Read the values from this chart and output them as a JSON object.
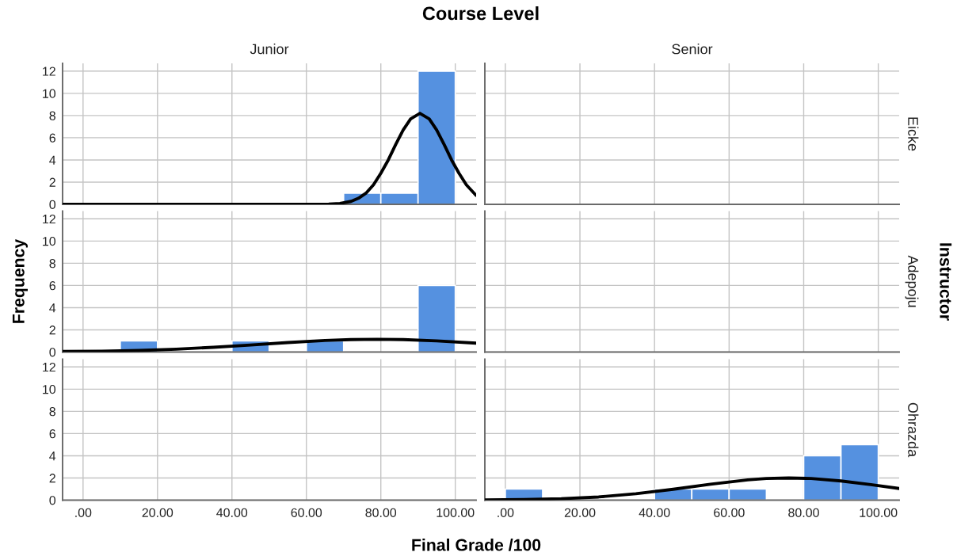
{
  "chart_data": [
    {
      "type": "histogram",
      "title": "Course Level",
      "subtitle": "Junior",
      "bins": [
        0,
        10,
        20,
        30,
        40,
        50,
        60,
        70,
        80,
        90,
        100
      ],
      "xlim": [
        -5.5,
        105.6
      ],
      "xticks": [
        0,
        20,
        40,
        60,
        80,
        100
      ],
      "ylim": [
        0,
        12.7
      ],
      "yticks": [
        0,
        2,
        4,
        6,
        8,
        10,
        12
      ],
      "grid": true,
      "tick_labels": "y",
      "series": [
        {
          "color": "#5591e0",
          "values": [
            0,
            0,
            0,
            0,
            0,
            0,
            0,
            1,
            1,
            12
          ]
        },
        {
          "type": "line",
          "color": "#000000",
          "x": [
            -5.5,
            55,
            62,
            66,
            69,
            72,
            74,
            76,
            78,
            80,
            82,
            84,
            86,
            88,
            90.5,
            93,
            95,
            97,
            99,
            101,
            103,
            105.6
          ],
          "values": [
            0,
            0,
            0,
            0.02,
            0.08,
            0.27,
            0.55,
            1.0,
            1.75,
            2.8,
            4.0,
            5.4,
            6.7,
            7.7,
            8.2,
            7.7,
            6.7,
            5.4,
            4.0,
            2.8,
            1.75,
            0.8
          ]
        }
      ]
    },
    {
      "type": "histogram",
      "subtitle": "Senior",
      "y2label": "Eicke",
      "xlim": [
        -5.5,
        105.6
      ],
      "xticks": [
        0,
        20,
        40,
        60,
        80,
        100
      ],
      "ylim": [
        0,
        12.7
      ],
      "yticks": [
        0,
        2,
        4,
        6,
        8,
        10,
        12
      ],
      "grid": true,
      "tick_labels": false
    },
    {
      "type": "histogram",
      "ylabel": "Frequency",
      "bins": [
        0,
        10,
        20,
        30,
        40,
        50,
        60,
        70,
        80,
        90,
        100
      ],
      "xlim": [
        -5.5,
        105.6
      ],
      "xticks": [
        0,
        20,
        40,
        60,
        80,
        100
      ],
      "ylim": [
        0,
        12.7
      ],
      "yticks": [
        0,
        2,
        4,
        6,
        8,
        10,
        12
      ],
      "grid": true,
      "tick_labels": "y",
      "series": [
        {
          "color": "#5591e0",
          "values": [
            0,
            1,
            0,
            0,
            1,
            0,
            1,
            0,
            0,
            6
          ]
        },
        {
          "type": "line",
          "color": "#000000",
          "x": [
            -5.5,
            5,
            15,
            25,
            35,
            45,
            55,
            65,
            72,
            79,
            86,
            95,
            105.6
          ],
          "values": [
            0.05,
            0.07,
            0.14,
            0.26,
            0.43,
            0.63,
            0.86,
            1.04,
            1.12,
            1.15,
            1.12,
            1.01,
            0.8
          ]
        }
      ]
    },
    {
      "type": "histogram",
      "y2label": "Adepoju",
      "annotations": [
        "Instructor"
      ],
      "xlim": [
        -5.5,
        105.6
      ],
      "xticks": [
        0,
        20,
        40,
        60,
        80,
        100
      ],
      "ylim": [
        0,
        12.7
      ],
      "yticks": [
        0,
        2,
        4,
        6,
        8,
        10,
        12
      ],
      "grid": true,
      "tick_labels": false
    },
    {
      "type": "histogram",
      "xlabel": "Final Grade /100",
      "xlim": [
        -5.5,
        105.6
      ],
      "xticks": [
        {
          "value": 0,
          "label": ".00"
        },
        {
          "value": 20,
          "label": "20.00"
        },
        {
          "value": 40,
          "label": "40.00"
        },
        {
          "value": 60,
          "label": "60.00"
        },
        {
          "value": 80,
          "label": "80.00"
        },
        {
          "value": 100,
          "label": "100.00"
        }
      ],
      "ylim": [
        0,
        12.7
      ],
      "yticks": [
        0,
        2,
        4,
        6,
        8,
        10,
        12
      ],
      "grid": true
    },
    {
      "type": "histogram",
      "y2label": "Ohrazda",
      "bins": [
        0,
        10,
        20,
        30,
        40,
        50,
        60,
        70,
        80,
        90,
        100
      ],
      "xlim": [
        -5.5,
        105.6
      ],
      "xticks": [
        {
          "value": 0,
          "label": ".00"
        },
        {
          "value": 20,
          "label": "20.00"
        },
        {
          "value": 40,
          "label": "40.00"
        },
        {
          "value": 60,
          "label": "60.00"
        },
        {
          "value": 80,
          "label": "80.00"
        },
        {
          "value": 100,
          "label": "100.00"
        }
      ],
      "ylim": [
        0,
        12.7
      ],
      "yticks": [
        0,
        2,
        4,
        6,
        8,
        10,
        12
      ],
      "grid": true,
      "tick_labels": "x",
      "series": [
        {
          "color": "#5591e0",
          "values": [
            1,
            0,
            0,
            0,
            1,
            1,
            1,
            0,
            4,
            5
          ]
        },
        {
          "type": "line",
          "color": "#000000",
          "x": [
            -5.5,
            5,
            15,
            25,
            35,
            45,
            55,
            65,
            70,
            76,
            82,
            90,
            98,
            105.6
          ],
          "values": [
            0.02,
            0.05,
            0.13,
            0.29,
            0.58,
            0.98,
            1.44,
            1.83,
            1.95,
            2.0,
            1.95,
            1.73,
            1.4,
            1.05
          ]
        }
      ]
    }
  ]
}
